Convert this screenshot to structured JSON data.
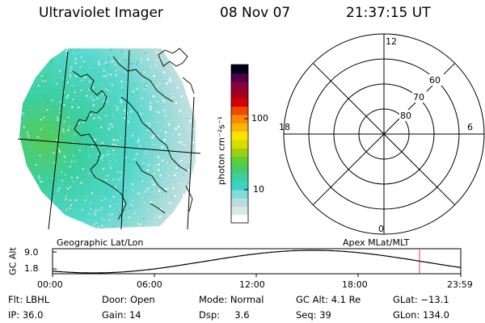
{
  "header": {
    "instrument": "Ultraviolet Imager",
    "date": "08 Nov 07",
    "time": "21:37:15 UT"
  },
  "colorbar": {
    "unit_label": "photon cm⁻²s⁻¹",
    "tick_100": "100",
    "tick_10": "10",
    "colors": [
      "#ffffff",
      "#dce8e8",
      "#b8dede",
      "#7fdcd6",
      "#3cd3c3",
      "#3ed0a0",
      "#48cc6a",
      "#5ed034",
      "#9ed010",
      "#d8dc00",
      "#fce200",
      "#fcb400",
      "#f88a00",
      "#ee4a00",
      "#d20000",
      "#a4001e",
      "#880040",
      "#4a0048",
      "#000018"
    ]
  },
  "polar_grid": {
    "lat_labels": [
      "80",
      "70",
      "60"
    ],
    "mlt_labels": {
      "top": "12",
      "left": "18",
      "right": "6",
      "bottom": "0"
    }
  },
  "map": {
    "left_caption": "Geographic Lat/Lon",
    "right_caption": "Apex MLat/MLT"
  },
  "altitude_plot": {
    "ylabel": "GC Alt",
    "y_ticks": [
      "9.0",
      "1.8"
    ],
    "x_ticks": [
      "00:00",
      "06:00",
      "12:00",
      "18:00",
      "23:59"
    ],
    "current_marker_color": "#d04040"
  },
  "status": {
    "filter": "Flt: LBHL",
    "door": "Door: Open",
    "mode": "Mode: Normal",
    "gc_alt": "GC Alt: 4.1 Re",
    "glat": "GLat: −13.1",
    "ip": "IP: 36.0",
    "gain": "Gain: 14",
    "dsp": "Dsp:     3.6",
    "seq": "Seq: 39",
    "glon": "GLon: 134.0"
  }
}
